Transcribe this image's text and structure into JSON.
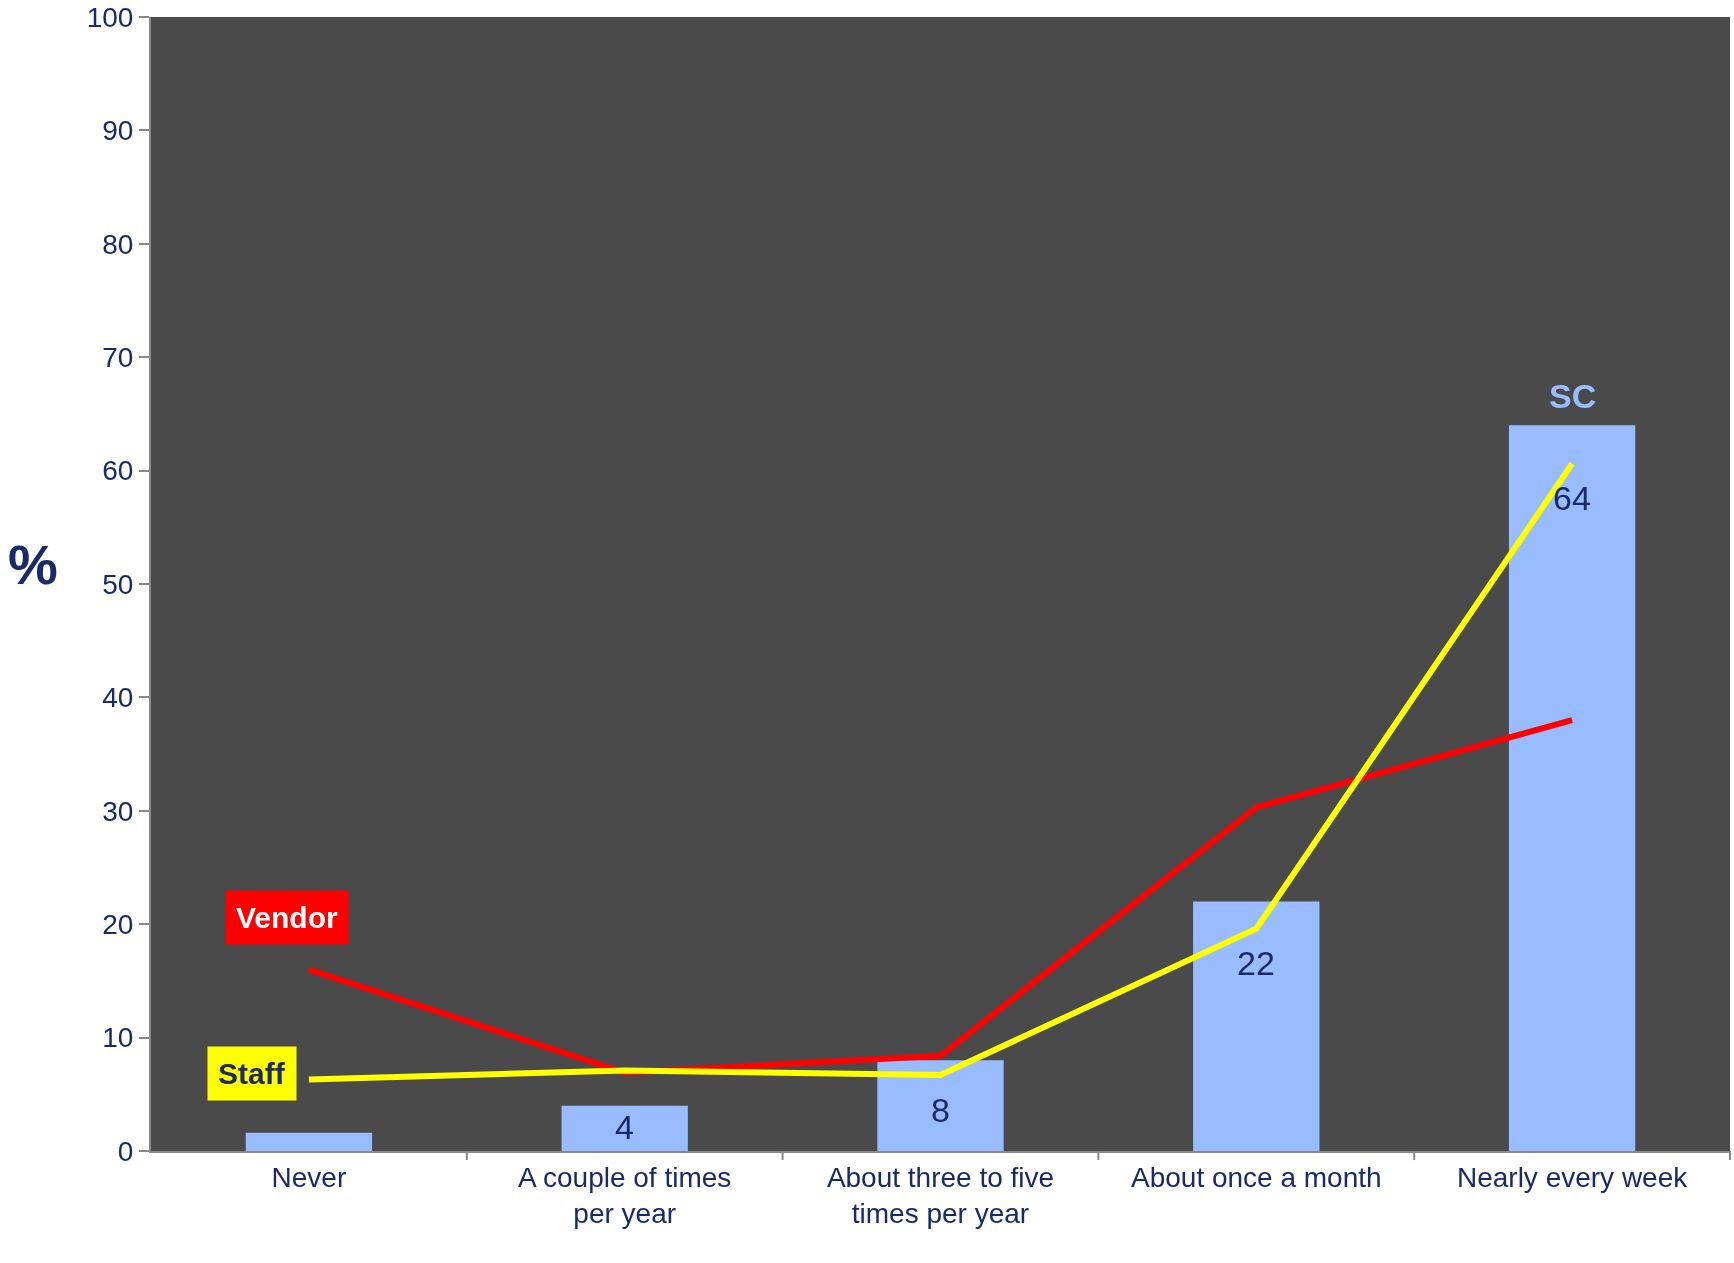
{
  "chart_data": {
    "type": "bar",
    "ylabel": "%",
    "categories": [
      "Never",
      "A couple of times per year",
      "About three to five times per year",
      "About once a month",
      "Nearly every week"
    ],
    "series": [
      {
        "name": "SC",
        "color": "#99bbff",
        "values": [
          1.6,
          4,
          8,
          22,
          64
        ],
        "value_labels": [
          null,
          "4",
          "8",
          "22",
          "64"
        ]
      },
      {
        "name": "Vendor",
        "type": "line",
        "color": "#ff0000",
        "values": [
          16.0,
          6.9,
          8.4,
          30.3,
          38.0
        ]
      },
      {
        "name": "Staff",
        "type": "line",
        "color": "#ffff00",
        "values": [
          6.3,
          7.1,
          6.7,
          19.6,
          60.6
        ]
      }
    ],
    "ylim": [
      0,
      100
    ],
    "yticks": [
      0,
      10,
      20,
      30,
      40,
      50,
      60,
      70,
      80,
      90,
      100
    ],
    "legend": false,
    "marker": "none"
  }
}
